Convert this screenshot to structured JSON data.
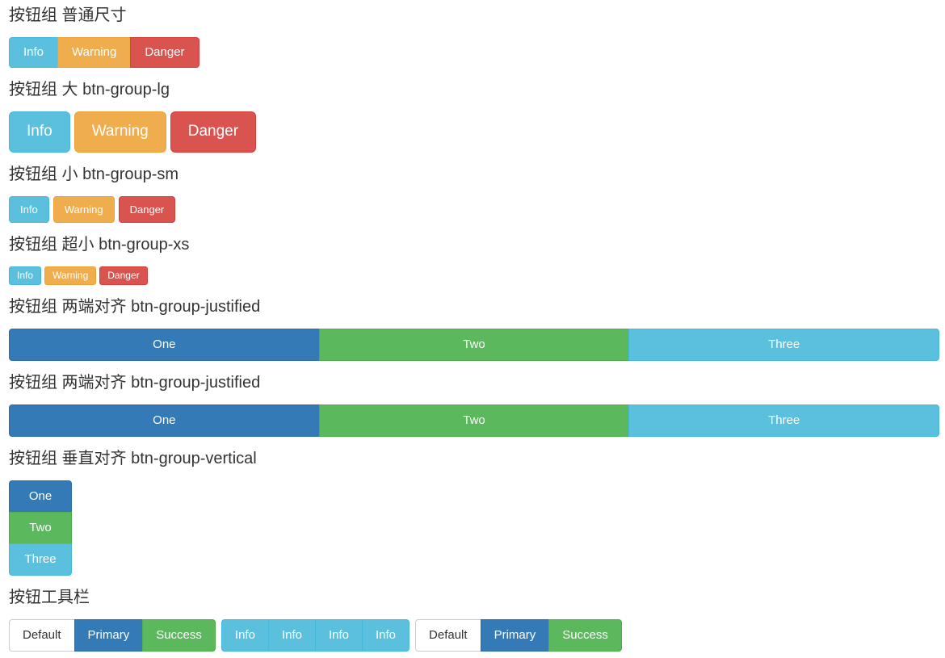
{
  "colors": {
    "info": "#5bc0de",
    "info_border": "#46b8da",
    "warning": "#f0ad4e",
    "warning_border": "#eea236",
    "danger": "#d9534f",
    "danger_border": "#d43f3a",
    "primary": "#337ab7",
    "primary_border": "#2e6da4",
    "success": "#5cb85c",
    "success_border": "#4cae4c",
    "default_bg": "#ffffff",
    "default_border": "#cccccc",
    "default_text": "#333333",
    "heading_text": "#333333",
    "page_background": "#ffffff"
  },
  "sections": {
    "normal": {
      "heading": "按钮组 普通尺寸",
      "buttons": [
        {
          "label": "Info",
          "variant": "info"
        },
        {
          "label": "Warning",
          "variant": "warning"
        },
        {
          "label": "Danger",
          "variant": "danger"
        }
      ]
    },
    "large": {
      "heading": "按钮组 大 btn-group-lg",
      "buttons": [
        {
          "label": "Info",
          "variant": "info"
        },
        {
          "label": "Warning",
          "variant": "warning"
        },
        {
          "label": "Danger",
          "variant": "danger"
        }
      ]
    },
    "small": {
      "heading": "按钮组 小 btn-group-sm",
      "buttons": [
        {
          "label": "Info",
          "variant": "info"
        },
        {
          "label": "Warning",
          "variant": "warning"
        },
        {
          "label": "Danger",
          "variant": "danger"
        }
      ]
    },
    "xsmall": {
      "heading": "按钮组 超小 btn-group-xs",
      "buttons": [
        {
          "label": "Info",
          "variant": "info"
        },
        {
          "label": "Warning",
          "variant": "warning"
        },
        {
          "label": "Danger",
          "variant": "danger"
        }
      ]
    },
    "justified1": {
      "heading": "按钮组 两端对齐 btn-group-justified",
      "buttons": [
        {
          "label": "One",
          "variant": "primary"
        },
        {
          "label": "Two",
          "variant": "success"
        },
        {
          "label": "Three",
          "variant": "info"
        }
      ]
    },
    "justified2": {
      "heading": "按钮组 两端对齐 btn-group-justified",
      "buttons": [
        {
          "label": "One",
          "variant": "primary"
        },
        {
          "label": "Two",
          "variant": "success"
        },
        {
          "label": "Three",
          "variant": "info"
        }
      ]
    },
    "vertical": {
      "heading": "按钮组 垂直对齐 btn-group-vertical",
      "buttons": [
        {
          "label": "One",
          "variant": "primary"
        },
        {
          "label": "Two",
          "variant": "success"
        },
        {
          "label": "Three",
          "variant": "info"
        }
      ]
    },
    "toolbar": {
      "heading": "按钮工具栏",
      "groups": [
        {
          "buttons": [
            {
              "label": "Default",
              "variant": "default"
            },
            {
              "label": "Primary",
              "variant": "primary"
            },
            {
              "label": "Success",
              "variant": "success"
            }
          ]
        },
        {
          "buttons": [
            {
              "label": "Info",
              "variant": "info"
            },
            {
              "label": "Info",
              "variant": "info"
            },
            {
              "label": "Info",
              "variant": "info"
            },
            {
              "label": "Info",
              "variant": "info"
            }
          ]
        },
        {
          "buttons": [
            {
              "label": "Default",
              "variant": "default"
            },
            {
              "label": "Primary",
              "variant": "primary"
            },
            {
              "label": "Success",
              "variant": "success"
            }
          ]
        }
      ]
    }
  }
}
